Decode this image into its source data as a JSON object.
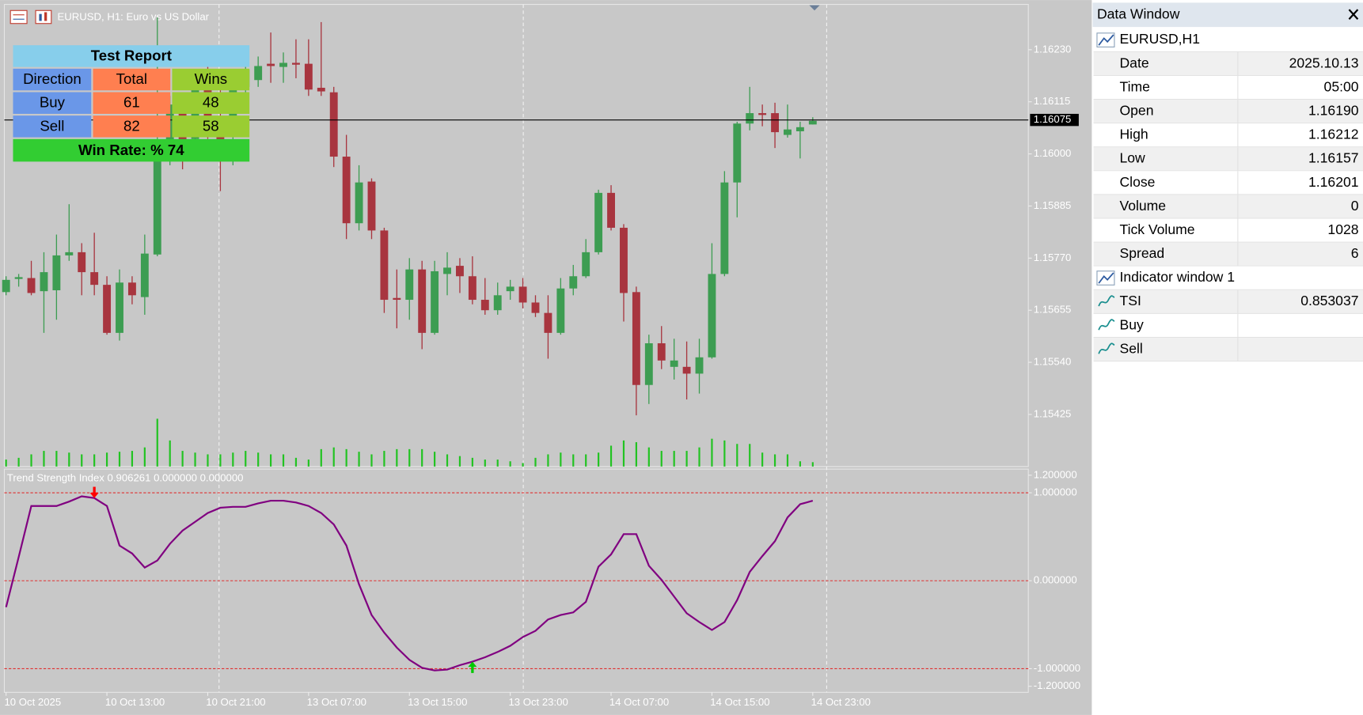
{
  "window": {
    "title": "EURUSD, H1:  Euro vs US Dollar"
  },
  "chart_data": [
    {
      "type": "candlestick",
      "categories": [
        "10 Oct 2025",
        null,
        null,
        null,
        null,
        null,
        null,
        null,
        "10 Oct 13:00",
        null,
        null,
        null,
        null,
        null,
        null,
        null,
        "10 Oct 21:00",
        null,
        null,
        null,
        null,
        null,
        null,
        null,
        "13 Oct 07:00",
        null,
        null,
        null,
        null,
        null,
        null,
        null,
        "13 Oct 15:00",
        null,
        null,
        null,
        null,
        null,
        null,
        null,
        "13 Oct 23:00",
        null,
        null,
        null,
        null,
        null,
        null,
        null,
        "14 Oct 07:00",
        null,
        null,
        null,
        null,
        null,
        null,
        null,
        "14 Oct 15:00",
        null,
        null,
        null,
        null,
        null,
        null,
        null,
        "14 Oct 23:00"
      ],
      "open": [
        1.15695,
        1.15724,
        1.15726,
        1.15697,
        1.15699,
        1.15776,
        1.15783,
        1.15739,
        1.15711,
        1.15605,
        1.15716,
        1.15684,
        1.15778,
        1.15994,
        1.16109,
        1.16033,
        1.16186,
        1.16052,
        1.16052,
        1.16148,
        1.16163,
        1.16199,
        1.16192,
        1.16201,
        1.16199,
        1.16146,
        1.16136,
        1.15994,
        1.15847,
        1.15939,
        1.15831,
        1.15682,
        1.15678,
        1.15745,
        1.15605,
        1.15735,
        1.15753,
        1.1573,
        1.15678,
        1.15655,
        1.15697,
        1.15707,
        1.15672,
        1.15649,
        1.15605,
        1.15703,
        1.1573,
        1.15783,
        1.15914,
        1.15837,
        1.15695,
        1.1549,
        1.15582,
        1.1553,
        1.1553,
        1.15515,
        1.15551,
        1.15735,
        1.15937,
        1.16067,
        1.1609,
        1.1609,
        1.16042,
        1.1605,
        1.16065
      ],
      "high": [
        1.1573,
        1.15735,
        1.15764,
        1.15783,
        1.15822,
        1.15889,
        1.15803,
        1.15826,
        1.1573,
        1.15745,
        1.1573,
        1.15822,
        1.16301,
        1.16128,
        1.16128,
        1.16167,
        1.16205,
        1.16148,
        1.16167,
        1.16215,
        1.16215,
        1.16268,
        1.16224,
        1.16253,
        1.16253,
        1.16291,
        1.16148,
        1.16042,
        1.15975,
        1.15946,
        1.15837,
        1.15745,
        1.1577,
        1.15764,
        1.15764,
        1.15783,
        1.1577,
        1.15774,
        1.15726,
        1.15716,
        1.15722,
        1.15726,
        1.15688,
        1.15688,
        1.15726,
        1.15755,
        1.15812,
        1.15921,
        1.15931,
        1.15845,
        1.15707,
        1.15601,
        1.1562,
        1.15592,
        1.15586,
        1.15592,
        1.15803,
        1.15962,
        1.16071,
        1.16148,
        1.16109,
        1.16113,
        1.16109,
        1.16071,
        1.16081
      ],
      "low": [
        1.15688,
        1.15707,
        1.15688,
        1.15605,
        1.15634,
        1.15764,
        1.15688,
        1.15688,
        1.15601,
        1.15588,
        1.15668,
        1.15645,
        1.15774,
        1.15975,
        1.15966,
        1.16013,
        1.16033,
        1.15918,
        1.15975,
        1.16128,
        1.16148,
        1.16157,
        1.16157,
        1.16167,
        1.16128,
        1.16128,
        1.15971,
        1.15812,
        1.15831,
        1.15812,
        1.15649,
        1.15615,
        1.15634,
        1.15569,
        1.15601,
        1.15688,
        1.15693,
        1.15668,
        1.15645,
        1.15645,
        1.15678,
        1.15659,
        1.1564,
        1.15548,
        1.15601,
        1.15688,
        1.15726,
        1.15778,
        1.15831,
        1.1563,
        1.15423,
        1.15448,
        1.15525,
        1.15502,
        1.15458,
        1.15471,
        1.15548,
        1.1573,
        1.1586,
        1.16052,
        1.16061,
        1.16013,
        1.16036,
        1.1599,
        1.16065
      ],
      "close": [
        1.15722,
        1.15728,
        1.15693,
        1.15739,
        1.15776,
        1.15783,
        1.15739,
        1.15711,
        1.15605,
        1.15716,
        1.15688,
        1.1578,
        1.15994,
        1.16109,
        1.15994,
        1.16148,
        1.16052,
        1.15985,
        1.16157,
        1.16186,
        1.16194,
        1.16194,
        1.16201,
        1.16197,
        1.16142,
        1.16138,
        1.15994,
        1.15847,
        1.15937,
        1.15831,
        1.15678,
        1.15678,
        1.15745,
        1.15605,
        1.15741,
        1.15749,
        1.1573,
        1.15678,
        1.15655,
        1.15688,
        1.15707,
        1.15672,
        1.15649,
        1.15605,
        1.15703,
        1.1573,
        1.15783,
        1.15914,
        1.15837,
        1.15693,
        1.1549,
        1.15582,
        1.15544,
        1.15544,
        1.15515,
        1.15551,
        1.15735,
        1.15937,
        1.16067,
        1.1609,
        1.16086,
        1.16048,
        1.16054,
        1.16059,
        1.16073
      ],
      "volume": [
        480,
        600,
        840,
        1080,
        1080,
        960,
        840,
        840,
        960,
        1020,
        1080,
        1320,
        3300,
        1800,
        1080,
        960,
        840,
        840,
        960,
        1080,
        960,
        840,
        840,
        600,
        480,
        1200,
        1320,
        1200,
        1020,
        840,
        1080,
        1200,
        1200,
        1200,
        1020,
        840,
        720,
        600,
        480,
        480,
        360,
        240,
        600,
        840,
        960,
        840,
        840,
        960,
        1440,
        1800,
        1680,
        1320,
        1080,
        1080,
        1080,
        1320,
        1920,
        1800,
        1560,
        1560,
        960,
        840,
        840,
        360,
        300
      ],
      "ylim": [
        1.1531,
        1.1633
      ],
      "yticks": [
        {
          "value": 1.1623,
          "label": "1.16230"
        },
        {
          "value": 1.16115,
          "label": "1.16115"
        },
        {
          "value": 1.16,
          "label": "1.16000"
        },
        {
          "value": 1.15885,
          "label": "1.15885"
        },
        {
          "value": 1.1577,
          "label": "1.15770"
        },
        {
          "value": 1.15655,
          "label": "1.15655"
        },
        {
          "value": 1.1554,
          "label": "1.15540"
        },
        {
          "value": 1.15425,
          "label": "1.15425"
        }
      ],
      "current_price": {
        "value": 1.16075,
        "label": "1.16075"
      },
      "up_color": "#3d9d52",
      "down_color": "#a8353f",
      "volume_color": "#22c322"
    },
    {
      "type": "line",
      "title": "Trend Strength Index 0.906261 0.000000 0.000000",
      "series": [
        {
          "name": "TSI",
          "color": "#800080",
          "values": [
            -0.3,
            0.27,
            0.85,
            0.85,
            0.85,
            0.9,
            0.96,
            0.94,
            0.85,
            0.4,
            0.31,
            0.15,
            0.23,
            0.42,
            0.57,
            0.67,
            0.77,
            0.83,
            0.84,
            0.84,
            0.88,
            0.91,
            0.91,
            0.89,
            0.85,
            0.77,
            0.64,
            0.4,
            -0.04,
            -0.39,
            -0.59,
            -0.76,
            -0.9,
            -0.99,
            -1.02,
            -1.01,
            -0.96,
            -0.92,
            -0.87,
            -0.81,
            -0.74,
            -0.64,
            -0.57,
            -0.44,
            -0.39,
            -0.36,
            -0.24,
            0.16,
            0.3,
            0.53,
            0.53,
            0.17,
            0.01,
            -0.18,
            -0.37,
            -0.47,
            -0.56,
            -0.47,
            -0.22,
            0.1,
            0.28,
            0.45,
            0.72,
            0.87,
            0.91
          ]
        },
        {
          "name": "Buy",
          "color": "#00c800",
          "values": [
            null,
            null,
            null,
            null,
            null,
            null,
            null,
            null,
            null,
            null,
            null,
            null,
            null,
            null,
            null,
            null,
            null,
            null,
            null,
            null,
            null,
            null,
            null,
            null,
            null,
            null,
            null,
            null,
            null,
            null,
            null,
            null,
            null,
            null,
            null,
            null,
            null,
            -0.92,
            null,
            null,
            null,
            null,
            null,
            null,
            null,
            null,
            null,
            null,
            null,
            null,
            null,
            null,
            null,
            null,
            null,
            null,
            null,
            null,
            null,
            null,
            null,
            null,
            null,
            null,
            null
          ]
        },
        {
          "name": "Sell",
          "color": "#ff0000",
          "values": [
            null,
            null,
            null,
            null,
            null,
            null,
            null,
            0.94,
            null,
            null,
            null,
            null,
            null,
            null,
            null,
            null,
            null,
            null,
            null,
            null,
            null,
            null,
            null,
            null,
            null,
            null,
            null,
            null,
            null,
            null,
            null,
            null,
            null,
            null,
            null,
            null,
            null,
            null,
            null,
            null,
            null,
            null,
            null,
            null,
            null,
            null,
            null,
            null,
            null,
            null,
            null,
            null,
            null,
            null,
            null,
            null,
            null,
            null,
            null,
            null,
            null,
            null,
            null,
            null,
            null
          ]
        }
      ],
      "ylim": [
        -1.2,
        1.2
      ],
      "yticks": [
        {
          "value": 1.2,
          "label": "1.200000"
        },
        {
          "value": 1,
          "label": "1.000000"
        },
        {
          "value": 0,
          "label": "0.000000"
        },
        {
          "value": -1,
          "label": "-1.000000"
        },
        {
          "value": -1.2,
          "label": "-1.200000"
        }
      ],
      "levels": [
        1,
        0,
        -1
      ],
      "level_color": "#e03030"
    }
  ],
  "test_report": {
    "title": "Test Report",
    "header": [
      "Direction",
      "Total",
      "Wins"
    ],
    "rows": [
      [
        "Buy",
        61,
        48
      ],
      [
        "Sell",
        82,
        58
      ]
    ],
    "footer": "Win Rate: %  74"
  },
  "data_window": {
    "title": "Data Window",
    "symbol": "EURUSD,H1",
    "rows": [
      [
        "Date",
        "2025.10.13"
      ],
      [
        "Time",
        "05:00"
      ],
      [
        "Open",
        "1.16190"
      ],
      [
        "High",
        "1.16212"
      ],
      [
        "Low",
        "1.16157"
      ],
      [
        "Close",
        "1.16201"
      ],
      [
        "Volume",
        0
      ],
      [
        "Tick Volume",
        1028
      ],
      [
        "Spread",
        6
      ]
    ],
    "indicator_title": "Indicator window 1",
    "tsi_value": "0.853037"
  }
}
